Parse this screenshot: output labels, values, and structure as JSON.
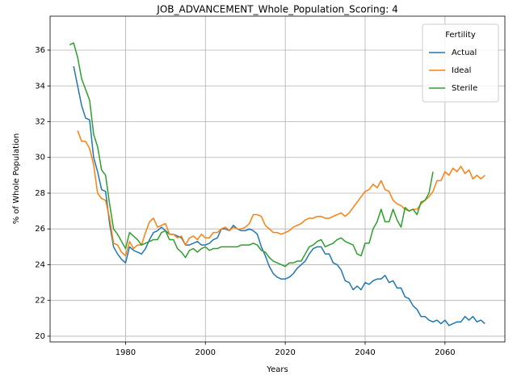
{
  "chart_data": {
    "type": "line",
    "title": "JOB_ADVANCEMENT_Whole_Population_Scoring: 4",
    "x_label": "Years",
    "y_label": "% of Whole Population",
    "legend_title": "Fertility",
    "legend_loc": "upper right",
    "grid": true,
    "xlim": [
      1961.1,
      2075.0
    ],
    "ylim": [
      19.68,
      37.9
    ],
    "xticks": [
      1980,
      2000,
      2020,
      2040,
      2060
    ],
    "yticks": [
      20,
      22,
      24,
      26,
      28,
      30,
      32,
      34,
      36
    ],
    "x": [
      1966,
      1967,
      1968,
      1969,
      1970,
      1971,
      1972,
      1973,
      1974,
      1975,
      1976,
      1977,
      1978,
      1979,
      1980,
      1981,
      1982,
      1983,
      1984,
      1985,
      1986,
      1987,
      1988,
      1989,
      1990,
      1991,
      1992,
      1993,
      1994,
      1995,
      1996,
      1997,
      1998,
      1999,
      2000,
      2001,
      2002,
      2003,
      2004,
      2005,
      2006,
      2007,
      2008,
      2009,
      2010,
      2011,
      2012,
      2013,
      2014,
      2015,
      2016,
      2017,
      2018,
      2019,
      2020,
      2021,
      2022,
      2023,
      2024,
      2025,
      2026,
      2027,
      2028,
      2029,
      2030,
      2031,
      2032,
      2033,
      2034,
      2035,
      2036,
      2037,
      2038,
      2039,
      2040,
      2041,
      2042,
      2043,
      2044,
      2045,
      2046,
      2047,
      2048,
      2049,
      2050,
      2051,
      2052,
      2053,
      2054,
      2055,
      2056,
      2057,
      2058,
      2059,
      2060,
      2061,
      2062,
      2063,
      2064,
      2065,
      2066,
      2067,
      2068,
      2069,
      2070
    ],
    "series": [
      {
        "name": "Actual",
        "color": "#1f77b4",
        "values": [
          null,
          35.1,
          34.0,
          32.9,
          32.2,
          32.1,
          30.0,
          29.2,
          28.2,
          28.1,
          26.3,
          25.0,
          24.6,
          24.3,
          24.1,
          25.0,
          24.8,
          24.7,
          24.6,
          24.9,
          25.4,
          25.8,
          25.9,
          26.1,
          25.9,
          25.7,
          25.7,
          25.6,
          25.5,
          25.1,
          25.1,
          25.2,
          25.3,
          25.1,
          25.1,
          25.2,
          25.4,
          25.5,
          26.0,
          26.0,
          25.9,
          26.2,
          26.0,
          25.9,
          25.9,
          26.0,
          25.9,
          25.7,
          25.0,
          24.5,
          23.9,
          23.5,
          23.3,
          23.2,
          23.2,
          23.3,
          23.5,
          23.8,
          24.0,
          24.2,
          24.6,
          24.9,
          25.0,
          25.0,
          24.6,
          24.6,
          24.1,
          24.0,
          23.7,
          23.1,
          23.0,
          22.6,
          22.8,
          22.6,
          23.0,
          22.9,
          23.1,
          23.2,
          23.2,
          23.4,
          23.0,
          23.1,
          22.7,
          22.7,
          22.2,
          22.1,
          21.7,
          21.5,
          21.1,
          21.1,
          20.9,
          20.8,
          20.9,
          20.7,
          20.9,
          20.6,
          20.7,
          20.8,
          20.8,
          21.1,
          20.9,
          21.1,
          20.8,
          20.9,
          20.7
        ]
      },
      {
        "name": "Ideal",
        "color": "#ff7f0e",
        "values": [
          null,
          null,
          31.5,
          30.9,
          30.9,
          30.5,
          29.6,
          28.0,
          27.7,
          27.6,
          26.6,
          25.2,
          25.1,
          24.7,
          24.5,
          25.3,
          24.9,
          25.1,
          25.1,
          25.8,
          26.4,
          26.6,
          26.1,
          26.2,
          26.3,
          25.7,
          25.7,
          25.5,
          25.6,
          25.1,
          25.5,
          25.6,
          25.4,
          25.7,
          25.5,
          25.5,
          25.8,
          25.8,
          26.0,
          26.1,
          25.9,
          26.1,
          26.0,
          26.0,
          26.1,
          26.3,
          26.8,
          26.8,
          26.7,
          26.2,
          26.0,
          25.8,
          25.8,
          25.7,
          25.8,
          25.9,
          26.1,
          26.2,
          26.3,
          26.5,
          26.6,
          26.6,
          26.7,
          26.7,
          26.6,
          26.6,
          26.7,
          26.8,
          26.9,
          26.7,
          26.9,
          27.2,
          27.5,
          27.8,
          28.1,
          28.2,
          28.5,
          28.3,
          28.7,
          28.2,
          28.1,
          27.6,
          27.4,
          27.3,
          27.1,
          27.0,
          27.1,
          27.1,
          27.4,
          27.6,
          27.8,
          28.1,
          28.7,
          28.7,
          29.2,
          29.0,
          29.4,
          29.2,
          29.5,
          29.1,
          29.3,
          28.8,
          29.0,
          28.8,
          29.0
        ]
      },
      {
        "name": "Sterile",
        "color": "#2ca02c",
        "values": [
          36.3,
          36.4,
          35.6,
          34.4,
          33.8,
          33.2,
          31.3,
          30.6,
          29.3,
          29.0,
          27.4,
          26.0,
          25.7,
          25.3,
          24.9,
          25.8,
          25.6,
          25.4,
          25.1,
          25.2,
          25.3,
          25.4,
          25.4,
          25.8,
          25.9,
          25.4,
          25.4,
          24.9,
          24.7,
          24.4,
          24.8,
          24.9,
          24.7,
          24.9,
          25.0,
          24.8,
          24.9,
          24.9,
          25.0,
          25.0,
          25.0,
          25.0,
          25.0,
          25.1,
          25.1,
          25.1,
          25.2,
          25.1,
          24.8,
          24.7,
          24.4,
          24.2,
          24.1,
          24.0,
          23.9,
          24.1,
          24.1,
          24.2,
          24.2,
          24.6,
          25.0,
          25.1,
          25.3,
          25.4,
          25.0,
          25.1,
          25.2,
          25.4,
          25.5,
          25.3,
          25.2,
          25.1,
          24.6,
          24.5,
          25.2,
          25.2,
          26.0,
          26.4,
          27.1,
          26.4,
          26.4,
          27.1,
          26.5,
          26.1,
          27.2,
          27.0,
          27.1,
          26.8,
          27.5,
          27.6,
          28.0,
          29.2,
          null,
          null,
          null,
          null,
          null,
          null,
          null,
          null,
          null,
          null,
          null,
          null,
          null
        ]
      }
    ]
  }
}
